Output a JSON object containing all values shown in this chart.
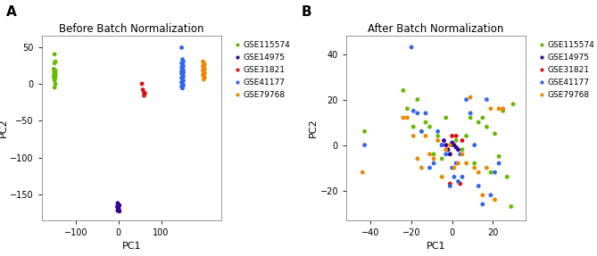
{
  "title_A": "Before Batch Normalization",
  "title_B": "After Batch Normalization",
  "xlabel": "PC1",
  "ylabel": "PC2",
  "legend_labels": [
    "GSE115574",
    "GSE14975",
    "GSE31821",
    "GSE41177",
    "GSE79768"
  ],
  "colors": [
    "#66bb00",
    "#330099",
    "#dd1111",
    "#3366ee",
    "#ee8800"
  ],
  "panel_A": {
    "GSE115574": {
      "x": [
        -150,
        -148,
        -150,
        -152,
        -148,
        -150,
        -149,
        -151,
        -148,
        -150,
        -152,
        -148,
        -149,
        -150,
        -148,
        -150,
        -150
      ],
      "y": [
        40,
        30,
        28,
        20,
        18,
        16,
        14,
        15,
        14,
        12,
        10,
        10,
        8,
        6,
        0,
        5,
        -5
      ]
    },
    "GSE14975": {
      "x": [
        -2,
        0,
        2,
        -3,
        0,
        -1,
        1,
        -2,
        2
      ],
      "y": [
        -162,
        -164,
        -165,
        -167,
        -168,
        -170,
        -171,
        -172,
        -173
      ]
    },
    "GSE31821": {
      "x": [
        55,
        57,
        60,
        62,
        60
      ],
      "y": [
        0,
        -8,
        -12,
        -13,
        -16
      ]
    },
    "GSE41177": {
      "x": [
        148,
        150,
        152,
        148,
        150,
        152,
        148,
        150,
        152,
        148,
        150,
        152,
        148,
        150,
        152,
        148,
        150,
        152,
        148,
        150,
        152,
        148,
        150,
        150
      ],
      "y": [
        49,
        33,
        30,
        28,
        26,
        24,
        22,
        20,
        18,
        17,
        16,
        15,
        14,
        12,
        10,
        8,
        6,
        4,
        2,
        0,
        -2,
        -4,
        -6,
        -2
      ]
    },
    "GSE79768": {
      "x": [
        198,
        200,
        202,
        198,
        200,
        202,
        198,
        200,
        202,
        198,
        200,
        202,
        200
      ],
      "y": [
        30,
        28,
        26,
        24,
        22,
        20,
        18,
        16,
        14,
        12,
        10,
        8,
        6
      ]
    }
  },
  "panel_B": {
    "GSE115574": {
      "x": [
        -43,
        -24,
        -22,
        -19,
        -17,
        -15,
        -13,
        -11,
        -9,
        -7,
        -5,
        -3,
        -1,
        0,
        2,
        5,
        7,
        9,
        11,
        13,
        15,
        17,
        19,
        21,
        23,
        25,
        27,
        29,
        30
      ],
      "y": [
        6,
        24,
        16,
        8,
        20,
        6,
        10,
        8,
        -4,
        4,
        -6,
        12,
        -4,
        0,
        2,
        -2,
        4,
        12,
        -8,
        10,
        12,
        8,
        -12,
        5,
        -5,
        15,
        -14,
        -27,
        18
      ]
    },
    "GSE14975": {
      "x": [
        -3,
        0,
        2,
        -4,
        3,
        -1,
        1,
        -2,
        -5
      ],
      "y": [
        0,
        1,
        -1,
        2,
        -2,
        -4,
        0,
        -2,
        0
      ]
    },
    "GSE31821": {
      "x": [
        -1,
        0,
        2,
        4,
        5
      ],
      "y": [
        -17,
        4,
        4,
        -17,
        2
      ]
    },
    "GSE41177": {
      "x": [
        -43,
        -20,
        -19,
        -17,
        -15,
        -13,
        -11,
        -9,
        -7,
        -5,
        -3,
        -1,
        1,
        3,
        5,
        7,
        9,
        11,
        13,
        15,
        17,
        19,
        21,
        23,
        0,
        2,
        4
      ],
      "y": [
        0,
        43,
        15,
        14,
        6,
        14,
        -10,
        -8,
        6,
        0,
        -4,
        -18,
        -14,
        -16,
        -14,
        20,
        14,
        0,
        -18,
        -26,
        20,
        -22,
        -12,
        -8,
        -10,
        -8,
        -4
      ]
    },
    "GSE79768": {
      "x": [
        -44,
        -24,
        -22,
        -19,
        -17,
        -15,
        -13,
        -11,
        -9,
        -7,
        -5,
        -3,
        -1,
        1,
        3,
        5,
        7,
        9,
        11,
        13,
        15,
        17,
        19,
        21,
        23,
        25
      ],
      "y": [
        -12,
        12,
        12,
        4,
        -6,
        -10,
        4,
        -4,
        -6,
        2,
        -14,
        -2,
        0,
        -10,
        -8,
        -4,
        -8,
        21,
        -10,
        -12,
        -22,
        -10,
        16,
        -24,
        16,
        16
      ]
    }
  },
  "xlim_A": [
    -180,
    240
  ],
  "ylim_A": [
    -185,
    65
  ],
  "xticks_A": [
    -100,
    0,
    100
  ],
  "yticks_A": [
    50,
    0,
    -50,
    -100,
    -150
  ],
  "xlim_B": [
    -52,
    36
  ],
  "ylim_B": [
    -33,
    48
  ],
  "xticks_B": [
    -40,
    -20,
    0,
    20
  ],
  "yticks_B": [
    40,
    20,
    0,
    -20
  ],
  "marker_size": 12,
  "bg_color": "#ffffff",
  "panel_labels": [
    "A",
    "B"
  ]
}
